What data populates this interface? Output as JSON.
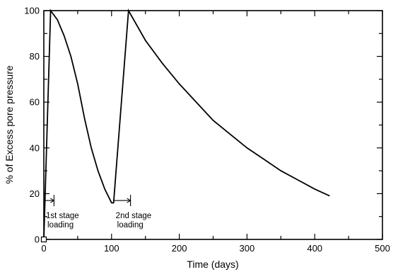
{
  "chart_data": {
    "type": "line",
    "xlabel": "Time (days)",
    "ylabel": "% of Excess pore pressure",
    "xlim": [
      0,
      500
    ],
    "ylim": [
      0,
      100
    ],
    "x_ticks": [
      0,
      100,
      200,
      300,
      400,
      500
    ],
    "y_ticks": [
      0,
      20,
      40,
      60,
      80,
      100
    ],
    "grid": false,
    "series": [
      {
        "x": [
          0,
          10,
          20,
          30,
          40,
          50,
          60,
          70,
          80,
          90,
          100,
          103,
          125,
          150,
          175,
          200,
          225,
          250,
          275,
          300,
          325,
          350,
          375,
          400,
          422
        ],
        "y": [
          0,
          100,
          96,
          89,
          80,
          68,
          53,
          40,
          30,
          22,
          16,
          16,
          100,
          87,
          77,
          68,
          60,
          52,
          46,
          40,
          35,
          30,
          26,
          22,
          19
        ]
      }
    ],
    "annotations": [
      {
        "line1": "1st stage",
        "line2": "loading",
        "x_start": 0,
        "x_end": 15
      },
      {
        "line1": "2nd stage",
        "line2": "loading",
        "x_start": 103,
        "x_end": 128
      }
    ]
  }
}
